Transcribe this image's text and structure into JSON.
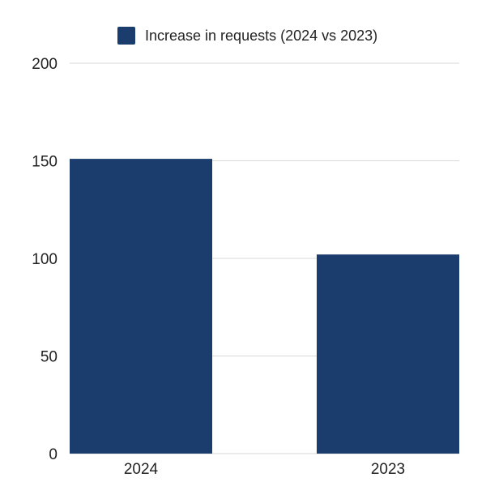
{
  "chart_data": {
    "type": "bar",
    "categories": [
      "2024",
      "2023"
    ],
    "series": [
      {
        "name": "Increase in requests (2024 vs 2023)",
        "values": [
          151,
          102
        ],
        "color": "#1b3d6e"
      }
    ],
    "ylim": [
      0,
      200
    ],
    "yticks": [
      0,
      50,
      100,
      150,
      200
    ],
    "grid": true,
    "legend_position": "top",
    "xlabel": "",
    "ylabel": ""
  }
}
